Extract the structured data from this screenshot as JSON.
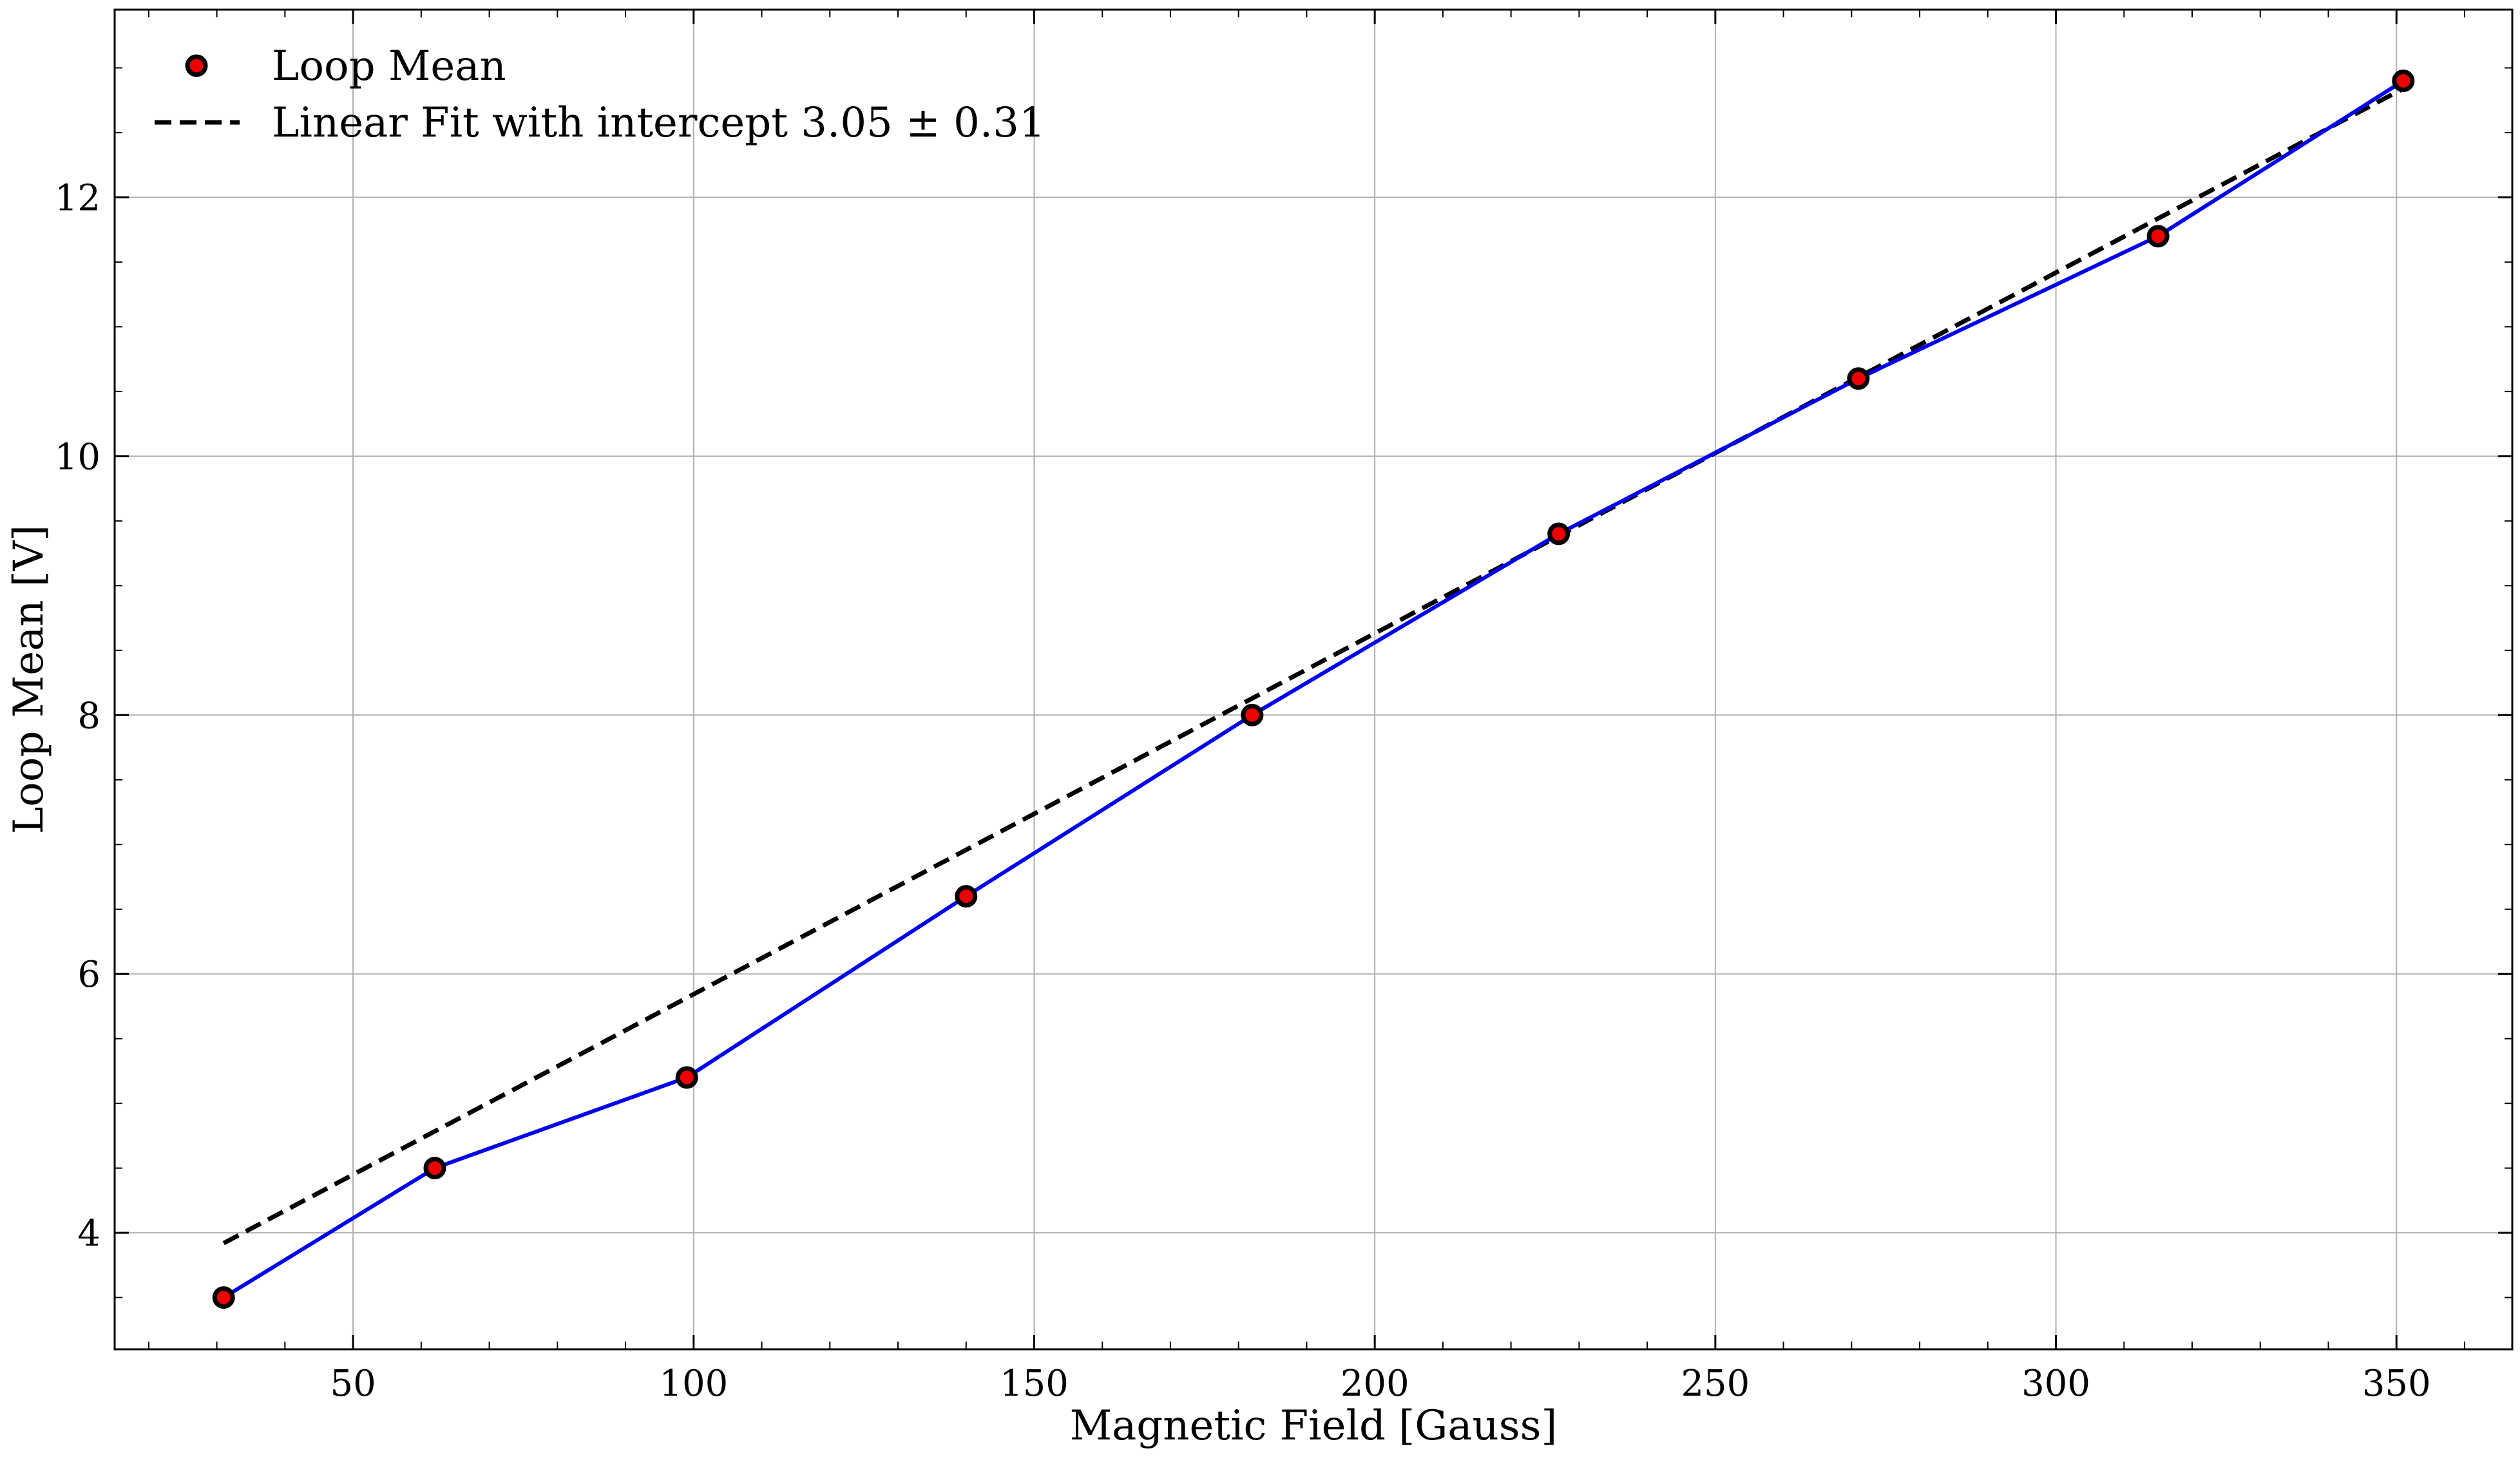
{
  "chart_data": {
    "type": "line",
    "xlabel": "Magnetic Field [Gauss]",
    "ylabel": "Loop Mean [V]",
    "xlim": [
      15,
      367
    ],
    "ylim": [
      3.1,
      13.45
    ],
    "x_ticks": [
      50,
      100,
      150,
      200,
      250,
      300,
      350
    ],
    "y_ticks": [
      4,
      6,
      8,
      10,
      12
    ],
    "x_tick_labels": [
      "50",
      "100",
      "150",
      "200",
      "250",
      "300",
      "350"
    ],
    "y_tick_labels": [
      "4",
      "6",
      "8",
      "10",
      "12"
    ],
    "grid": true,
    "legend_position": "top-left",
    "legend": [
      {
        "label": "Loop Mean",
        "marker": "circle"
      },
      {
        "label": "Linear Fit with intercept 3.05 ± 0.31",
        "marker": "dashed-line"
      }
    ],
    "series": [
      {
        "name": "Loop Mean",
        "x": [
          31,
          62,
          99,
          140,
          182,
          227,
          271,
          315,
          351
        ],
        "y": [
          3.5,
          4.5,
          5.2,
          6.6,
          8.0,
          9.4,
          10.6,
          11.7,
          12.9
        ],
        "color": "#0000ee",
        "marker_fill": "#ee0000",
        "marker_edge": "#000000"
      },
      {
        "name": "Linear Fit with intercept 3.05 ± 0.31",
        "x": [
          31,
          351
        ],
        "y": [
          3.92,
          12.84
        ],
        "color": "#000000",
        "style": "dashed"
      }
    ]
  }
}
